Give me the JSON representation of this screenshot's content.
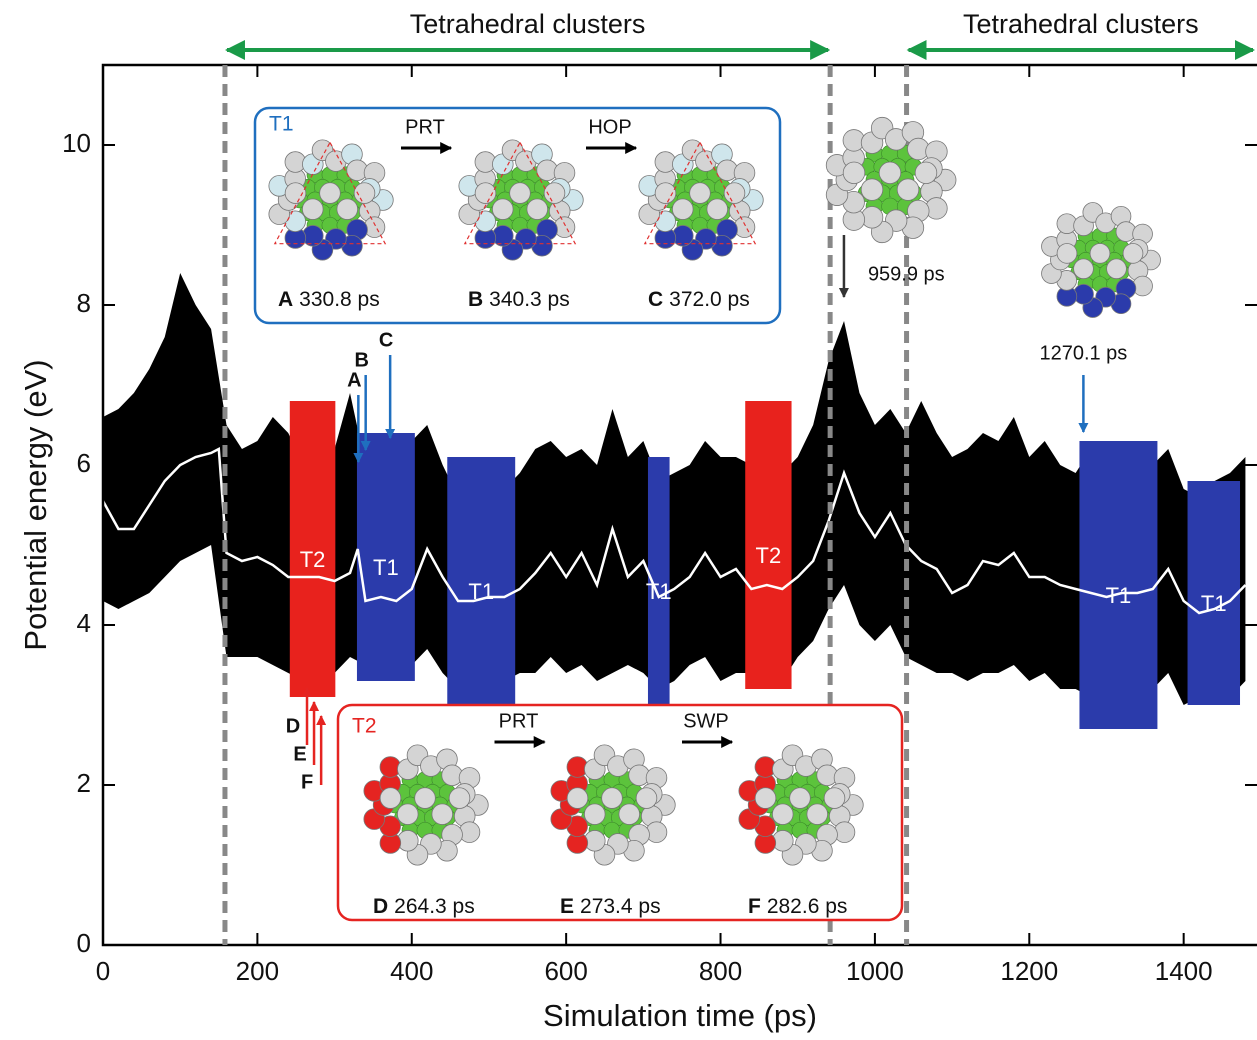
{
  "chart_data": {
    "type": "line",
    "x_label": "Simulation time (ps)",
    "y_label": "Potential energy (eV)",
    "xlim": [
      0,
      1495
    ],
    "ylim": [
      0,
      11
    ],
    "xticks": [
      0,
      200,
      400,
      600,
      800,
      1000,
      1200,
      1400
    ],
    "yticks": [
      0,
      2,
      4,
      6,
      8,
      10
    ],
    "envelope": {
      "color": "#000000",
      "x": [
        0,
        20,
        40,
        60,
        80,
        100,
        120,
        140,
        160,
        180,
        200,
        220,
        240,
        260,
        280,
        300,
        320,
        340,
        360,
        380,
        400,
        420,
        440,
        460,
        480,
        500,
        520,
        540,
        560,
        580,
        600,
        620,
        640,
        660,
        680,
        700,
        720,
        740,
        760,
        780,
        800,
        820,
        840,
        860,
        880,
        900,
        920,
        940,
        960,
        980,
        1000,
        1020,
        1040,
        1060,
        1080,
        1100,
        1120,
        1140,
        1160,
        1180,
        1200,
        1220,
        1240,
        1260,
        1280,
        1300,
        1320,
        1340,
        1360,
        1380,
        1400,
        1420,
        1440,
        1460,
        1480
      ],
      "upper": [
        6.6,
        6.7,
        6.9,
        7.2,
        7.6,
        8.4,
        8.0,
        7.7,
        6.5,
        6.2,
        6.3,
        6.6,
        6.4,
        6.0,
        6.3,
        6.2,
        6.9,
        6.0,
        5.9,
        5.9,
        6.3,
        6.5,
        6.0,
        5.6,
        5.7,
        5.8,
        5.7,
        5.9,
        6.2,
        6.3,
        6.1,
        6.2,
        6.0,
        6.7,
        6.1,
        6.3,
        5.8,
        5.9,
        6.0,
        6.3,
        6.1,
        6.1,
        6.0,
        6.2,
        5.9,
        6.1,
        6.5,
        7.3,
        7.8,
        6.9,
        6.5,
        6.7,
        6.4,
        6.8,
        6.4,
        6.1,
        6.2,
        6.4,
        6.3,
        6.6,
        6.1,
        6.3,
        6.0,
        5.9,
        6.2,
        5.8,
        5.7,
        5.8,
        6.0,
        6.2,
        5.7,
        5.6,
        5.8,
        5.9,
        6.1
      ],
      "lower": [
        4.3,
        4.2,
        4.3,
        4.4,
        4.6,
        4.8,
        4.9,
        5.0,
        3.6,
        3.6,
        3.6,
        3.5,
        3.4,
        3.3,
        3.4,
        3.4,
        3.6,
        3.5,
        3.4,
        3.4,
        3.5,
        3.7,
        3.4,
        3.2,
        3.1,
        3.2,
        3.3,
        3.4,
        3.4,
        3.6,
        3.4,
        3.5,
        3.3,
        3.4,
        3.5,
        3.4,
        3.2,
        3.3,
        3.5,
        3.6,
        3.3,
        3.4,
        3.4,
        3.3,
        3.3,
        3.6,
        3.8,
        4.2,
        4.5,
        4.0,
        3.8,
        4.0,
        3.6,
        3.5,
        3.4,
        3.4,
        3.3,
        3.4,
        3.4,
        3.5,
        3.3,
        3.4,
        3.2,
        3.2,
        3.1,
        2.9,
        3.0,
        3.1,
        3.2,
        3.4,
        3.0,
        3.1,
        3.0,
        3.1,
        3.3
      ]
    },
    "average": {
      "color": "#ffffff",
      "x": [
        0,
        20,
        40,
        60,
        80,
        100,
        120,
        140,
        150,
        160,
        180,
        200,
        220,
        240,
        260,
        280,
        300,
        320,
        330,
        340,
        360,
        380,
        400,
        420,
        440,
        460,
        480,
        500,
        520,
        540,
        560,
        580,
        600,
        620,
        640,
        660,
        680,
        700,
        720,
        740,
        760,
        780,
        800,
        820,
        840,
        860,
        880,
        900,
        920,
        940,
        960,
        980,
        1000,
        1020,
        1040,
        1060,
        1080,
        1100,
        1120,
        1140,
        1160,
        1180,
        1200,
        1220,
        1240,
        1260,
        1280,
        1300,
        1320,
        1340,
        1360,
        1380,
        1400,
        1420,
        1440,
        1460,
        1480
      ],
      "values": [
        5.55,
        5.2,
        5.2,
        5.5,
        5.8,
        6.0,
        6.1,
        6.15,
        6.2,
        4.9,
        4.8,
        4.85,
        4.75,
        4.6,
        4.6,
        4.6,
        4.55,
        4.65,
        4.95,
        4.3,
        4.35,
        4.3,
        4.45,
        4.95,
        4.6,
        4.3,
        4.3,
        4.35,
        4.35,
        4.45,
        4.65,
        4.9,
        4.6,
        4.9,
        4.5,
        5.2,
        4.6,
        4.8,
        4.35,
        4.45,
        4.6,
        4.9,
        4.6,
        4.7,
        4.45,
        4.5,
        4.45,
        4.6,
        4.8,
        5.3,
        5.9,
        5.4,
        5.1,
        5.4,
        5.0,
        4.8,
        4.7,
        4.4,
        4.5,
        4.8,
        4.75,
        4.9,
        4.6,
        4.6,
        4.5,
        4.45,
        4.4,
        4.35,
        4.4,
        4.4,
        4.45,
        4.7,
        4.3,
        4.15,
        4.2,
        4.3,
        4.5
      ]
    },
    "regions": [
      {
        "label": "T2",
        "start": 242,
        "end": 301,
        "upper": 6.8,
        "lower": 3.1,
        "color": "#e8221d"
      },
      {
        "label": "T1",
        "start": 329,
        "end": 404,
        "upper": 6.4,
        "lower": 3.3,
        "color": "#2b3bab"
      },
      {
        "label": "T1",
        "start": 446,
        "end": 534,
        "upper": 6.1,
        "lower": 3.0,
        "color": "#2b3bab"
      },
      {
        "label": "T1",
        "start": 706,
        "end": 734,
        "upper": 6.1,
        "lower": 3.0,
        "color": "#2b3bab"
      },
      {
        "label": "T2",
        "start": 832,
        "end": 892,
        "upper": 6.8,
        "lower": 3.2,
        "color": "#e8221d"
      },
      {
        "label": "T1",
        "start": 1265,
        "end": 1366,
        "upper": 6.3,
        "lower": 2.7,
        "color": "#2b3bab"
      },
      {
        "label": "T1",
        "start": 1405,
        "end": 1473,
        "upper": 5.8,
        "lower": 3.0,
        "color": "#2b3bab"
      }
    ],
    "phases": [
      {
        "label": "Tetrahedral clusters",
        "start": 158,
        "end": 942
      },
      {
        "label": "Tetrahedral clusters",
        "start": 1041,
        "end": 1495
      }
    ],
    "events": [
      {
        "letter": "A",
        "time": 330.8,
        "color": "#1f6fbf",
        "direction": "down"
      },
      {
        "letter": "B",
        "time": 340.3,
        "color": "#1f6fbf",
        "direction": "down"
      },
      {
        "letter": "C",
        "time": 372.0,
        "color": "#1f6fbf",
        "direction": "down"
      },
      {
        "letter": "D",
        "time": 264.3,
        "color": "#e52421",
        "direction": "up"
      },
      {
        "letter": "E",
        "time": 273.4,
        "color": "#e52421",
        "direction": "up"
      },
      {
        "letter": "F",
        "time": 282.6,
        "color": "#e52421",
        "direction": "up"
      },
      {
        "time": 959.9,
        "time_label": "959.9 ps",
        "color": "#333333",
        "direction": "down"
      },
      {
        "time": 1270.1,
        "time_label": "1270.1 ps",
        "color": "#1f6fbf",
        "direction": "down"
      }
    ],
    "insets": [
      {
        "label": "T1",
        "color": "#1f6fbf",
        "transitions": [
          "PRT",
          "HOP"
        ],
        "frames": [
          {
            "letter": "A",
            "caption": "330.8 ps"
          },
          {
            "letter": "B",
            "caption": "340.3 ps"
          },
          {
            "letter": "C",
            "caption": "372.0 ps"
          }
        ]
      },
      {
        "label": "T2",
        "color": "#e52421",
        "transitions": [
          "PRT",
          "SWP"
        ],
        "frames": [
          {
            "letter": "D",
            "caption": "264.3 ps"
          },
          {
            "letter": "E",
            "caption": "273.4 ps"
          },
          {
            "letter": "F",
            "caption": "282.6 ps"
          }
        ]
      }
    ]
  }
}
